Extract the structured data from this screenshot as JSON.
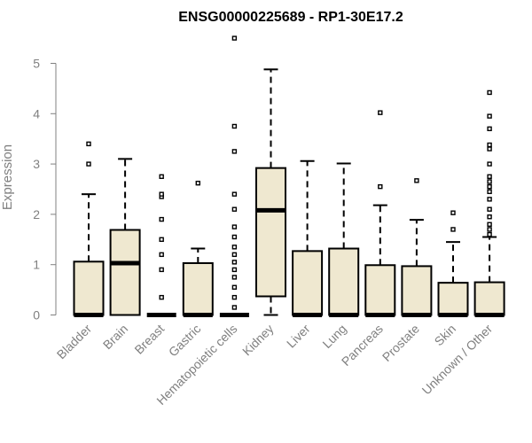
{
  "chart_data": {
    "type": "box",
    "title": "ENSG00000225689 - RP1-30E17.2",
    "xlabel": "",
    "ylabel": "Expression",
    "ylim": [
      0,
      5.5
    ],
    "yticks": [
      "0",
      "1",
      "2",
      "3",
      "4",
      "5"
    ],
    "colors": {
      "box_fill": "#efe8d0",
      "stroke": "#000000",
      "axis": "#808080"
    },
    "categories": [
      "Bladder",
      "Brain",
      "Breast",
      "Gastric",
      "Hematopoietic cells",
      "Kidney",
      "Liver",
      "Lung",
      "Pancreas",
      "Prostate",
      "Skin",
      "Unknown / Other"
    ],
    "boxes": [
      {
        "category": "Bladder",
        "q1": 0,
        "median": 0,
        "q3": 1.06,
        "whisker_low": 0,
        "whisker_high": 2.4,
        "outliers": [
          3.0,
          3.4
        ]
      },
      {
        "category": "Brain",
        "q1": 0,
        "median": 1.03,
        "q3": 1.69,
        "whisker_low": 0,
        "whisker_high": 3.1,
        "outliers": []
      },
      {
        "category": "Breast",
        "q1": 0,
        "median": 0,
        "q3": 0,
        "whisker_low": 0,
        "whisker_high": 0,
        "outliers": [
          0.35,
          0.9,
          1.2,
          1.5,
          1.9,
          2.35,
          2.4,
          2.75
        ]
      },
      {
        "category": "Gastric",
        "q1": 0,
        "median": 0,
        "q3": 1.03,
        "whisker_low": 0,
        "whisker_high": 1.32,
        "outliers": [
          2.62
        ]
      },
      {
        "category": "Hematopoietic cells",
        "q1": 0,
        "median": 0,
        "q3": 0,
        "whisker_low": 0,
        "whisker_high": 0,
        "outliers": [
          0.15,
          0.35,
          0.55,
          0.75,
          0.9,
          1.05,
          1.2,
          1.35,
          1.55,
          1.75,
          2.1,
          2.4,
          3.25,
          3.75,
          5.5
        ]
      },
      {
        "category": "Kidney",
        "q1": 0.37,
        "median": 2.08,
        "q3": 2.92,
        "whisker_low": 0,
        "whisker_high": 4.88,
        "outliers": []
      },
      {
        "category": "Liver",
        "q1": 0,
        "median": 0,
        "q3": 1.27,
        "whisker_low": 0,
        "whisker_high": 3.06,
        "outliers": []
      },
      {
        "category": "Lung",
        "q1": 0,
        "median": 0,
        "q3": 1.32,
        "whisker_low": 0,
        "whisker_high": 3.01,
        "outliers": []
      },
      {
        "category": "Pancreas",
        "q1": 0,
        "median": 0,
        "q3": 0.99,
        "whisker_low": 0,
        "whisker_high": 2.18,
        "outliers": [
          2.55,
          4.02
        ]
      },
      {
        "category": "Prostate",
        "q1": 0,
        "median": 0,
        "q3": 0.97,
        "whisker_low": 0,
        "whisker_high": 1.89,
        "outliers": [
          2.67
        ]
      },
      {
        "category": "Skin",
        "q1": 0,
        "median": 0,
        "q3": 0.64,
        "whisker_low": 0,
        "whisker_high": 1.45,
        "outliers": [
          1.7,
          2.03
        ]
      },
      {
        "category": "Unknown / Other",
        "q1": 0,
        "median": 0,
        "q3": 0.65,
        "whisker_low": 0,
        "whisker_high": 1.55,
        "outliers": [
          1.6,
          1.7,
          1.8,
          1.95,
          2.1,
          2.3,
          2.45,
          2.55,
          2.65,
          2.75,
          3.0,
          3.3,
          3.38,
          3.7,
          3.95,
          4.42
        ]
      }
    ]
  }
}
